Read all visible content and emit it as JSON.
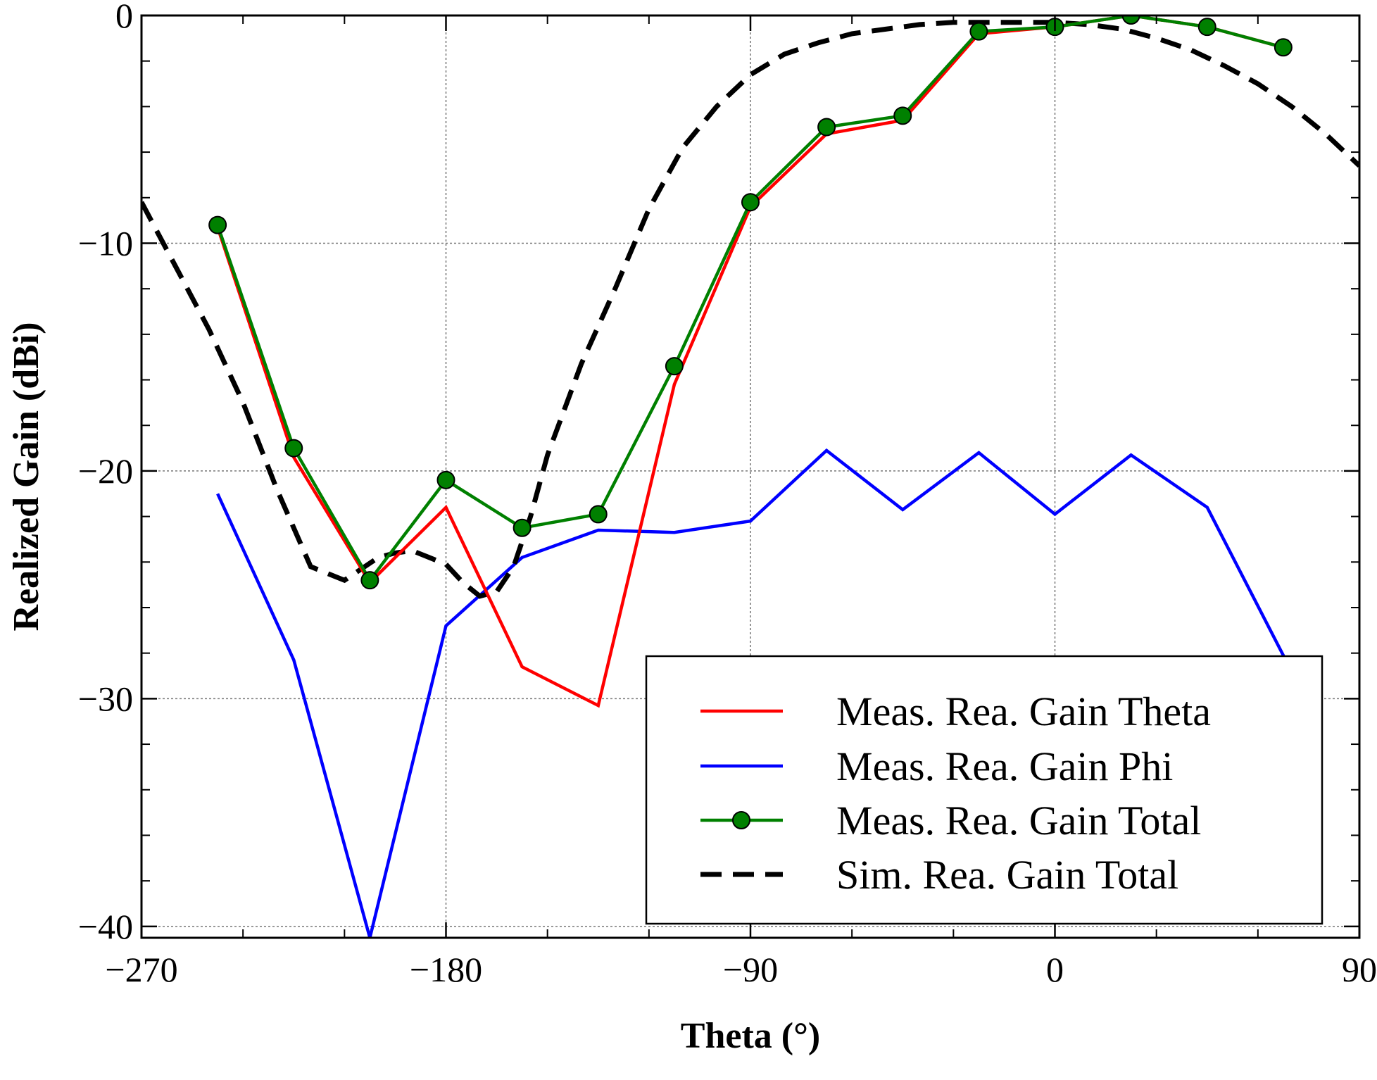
{
  "chart_data": {
    "type": "line",
    "title": "",
    "xlabel": "Theta (°)",
    "ylabel": "Realized Gain (dBi)",
    "xlim": [
      -270,
      90
    ],
    "ylim": [
      -40.5,
      0
    ],
    "xticks": [
      -270,
      -180,
      -90,
      0,
      90
    ],
    "xtick_labels": [
      "−270",
      "−180",
      "−90",
      "0",
      "90"
    ],
    "yticks": [
      0,
      -10,
      -20,
      -30,
      -40
    ],
    "ytick_labels": [
      "0",
      "−10",
      "−20",
      "−30",
      "−40"
    ],
    "x_minor_step": 30,
    "y_minor_step": 2,
    "grid": true,
    "legend_position": "bottom-right",
    "series": [
      {
        "name": "Meas. Rea. Gain Theta",
        "color": "#ff0000",
        "style": "solid",
        "x": [
          -247.5,
          -225,
          -202.5,
          -180,
          -157.5,
          -135,
          -112.5,
          -90,
          -67.5,
          -45,
          -22.5,
          0,
          22.5,
          45,
          67.5
        ],
        "y": [
          -9.3,
          -19.4,
          -24.9,
          -21.6,
          -28.6,
          -30.3,
          -16.2,
          -8.4,
          -5.2,
          -4.6,
          -0.8,
          -0.5,
          0.0,
          -0.5,
          -1.4
        ]
      },
      {
        "name": "Meas. Rea. Gain Phi",
        "color": "#0000ff",
        "style": "solid",
        "x": [
          -247.5,
          -225,
          -202.5,
          -180,
          -157.5,
          -135,
          -112.5,
          -90,
          -67.5,
          -45,
          -22.5,
          0,
          22.5,
          45,
          67.5,
          75
        ],
        "y": [
          -21.0,
          -28.3,
          -40.5,
          -26.8,
          -23.8,
          -22.6,
          -22.7,
          -22.2,
          -19.1,
          -21.7,
          -19.2,
          -21.9,
          -19.3,
          -21.6,
          -28.1,
          -30.5
        ]
      },
      {
        "name": "Meas. Rea. Gain Total",
        "color": "#008000",
        "style": "solid-marker",
        "x": [
          -247.5,
          -225,
          -202.5,
          -180,
          -157.5,
          -135,
          -112.5,
          -90,
          -67.5,
          -45,
          -22.5,
          0,
          22.5,
          45,
          67.5
        ],
        "y": [
          -9.2,
          -19.0,
          -24.8,
          -20.4,
          -22.5,
          -21.9,
          -15.4,
          -8.2,
          -4.9,
          -4.4,
          -0.7,
          -0.5,
          0.0,
          -0.5,
          -1.4
        ]
      },
      {
        "name": "Sim. Rea. Gain Total",
        "color": "#000000",
        "style": "dashed",
        "x": [
          -270,
          -260,
          -250,
          -240,
          -230,
          -220,
          -210,
          -205,
          -200,
          -195,
          -190,
          -185,
          -180,
          -175,
          -170,
          -165,
          -160,
          -155,
          -150,
          -140,
          -130,
          -120,
          -110,
          -100,
          -90,
          -80,
          -70,
          -60,
          -50,
          -40,
          -30,
          -20,
          -10,
          0,
          10,
          20,
          30,
          40,
          50,
          60,
          70,
          80,
          90
        ],
        "y": [
          -8.2,
          -11.0,
          -13.8,
          -17.0,
          -20.8,
          -24.2,
          -24.8,
          -24.3,
          -23.8,
          -23.6,
          -23.5,
          -23.8,
          -24.1,
          -24.9,
          -25.5,
          -25.3,
          -24.2,
          -22.0,
          -19.3,
          -15.3,
          -12.0,
          -8.5,
          -5.8,
          -4.0,
          -2.6,
          -1.7,
          -1.2,
          -0.8,
          -0.6,
          -0.4,
          -0.3,
          -0.3,
          -0.3,
          -0.3,
          -0.4,
          -0.6,
          -1.0,
          -1.5,
          -2.2,
          -3.0,
          -4.0,
          -5.2,
          -6.6
        ]
      }
    ]
  }
}
